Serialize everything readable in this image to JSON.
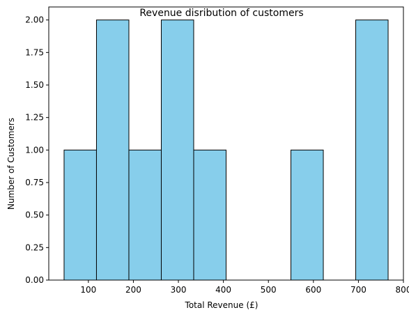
{
  "chart_data": {
    "type": "bar",
    "subtype": "histogram",
    "title": "Revenue disribution of customers",
    "xlabel": "Total Revenue (£)",
    "ylabel": "Number of Customers",
    "xlim": [
      12,
      800
    ],
    "ylim": [
      0,
      2.1
    ],
    "x_ticks": [
      100,
      200,
      300,
      400,
      500,
      600,
      700,
      800
    ],
    "y_ticks": [
      "0.00",
      "0.25",
      "0.50",
      "0.75",
      "1.00",
      "1.25",
      "1.50",
      "1.75",
      "2.00"
    ],
    "bins": [
      {
        "from": 46,
        "to": 118,
        "count": 1
      },
      {
        "from": 118,
        "to": 190,
        "count": 2
      },
      {
        "from": 190,
        "to": 262,
        "count": 1
      },
      {
        "from": 262,
        "to": 334,
        "count": 2
      },
      {
        "from": 334,
        "to": 406,
        "count": 1
      },
      {
        "from": 406,
        "to": 478,
        "count": 0
      },
      {
        "from": 478,
        "to": 550,
        "count": 0
      },
      {
        "from": 550,
        "to": 622,
        "count": 1
      },
      {
        "from": 622,
        "to": 694,
        "count": 0
      },
      {
        "from": 694,
        "to": 766,
        "count": 2
      }
    ],
    "bar_color": "#87CEEB",
    "edge_color": "#000000",
    "grid": false,
    "legend": "none"
  }
}
